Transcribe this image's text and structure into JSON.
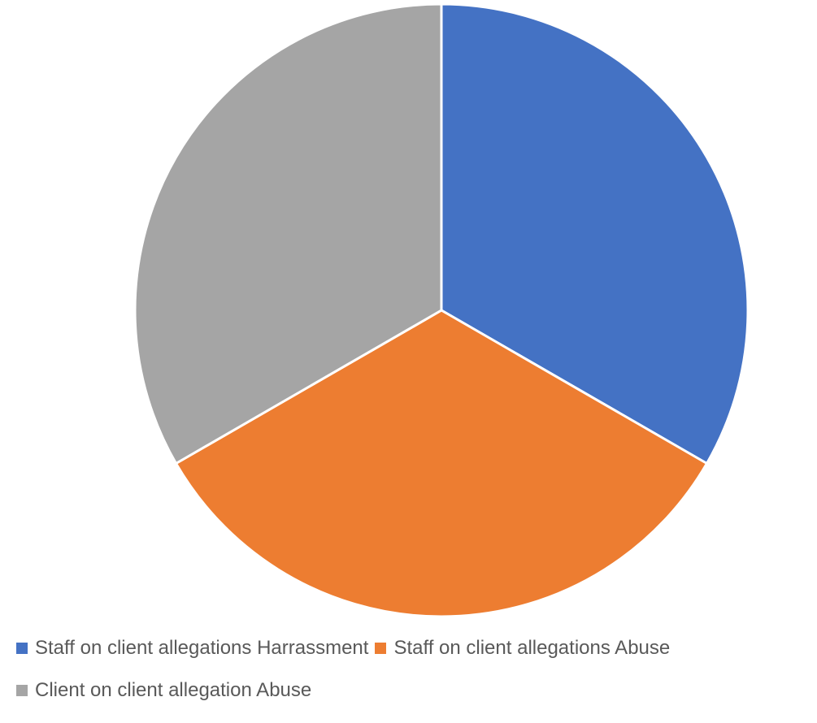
{
  "chart_data": {
    "type": "pie",
    "title": "",
    "slices": [
      {
        "label": "Staff on client allegations Harrassment",
        "value": 1,
        "color": "#4472C4"
      },
      {
        "label": "Staff on client allegations Abuse",
        "value": 1,
        "color": "#ED7D31"
      },
      {
        "label": "Client on client allegation Abuse",
        "value": 1,
        "color": "#A5A5A5"
      }
    ],
    "start_angle_deg": 0,
    "direction": "clockwise",
    "legend_position": "bottom",
    "slice_border_color": "#FFFFFF"
  }
}
